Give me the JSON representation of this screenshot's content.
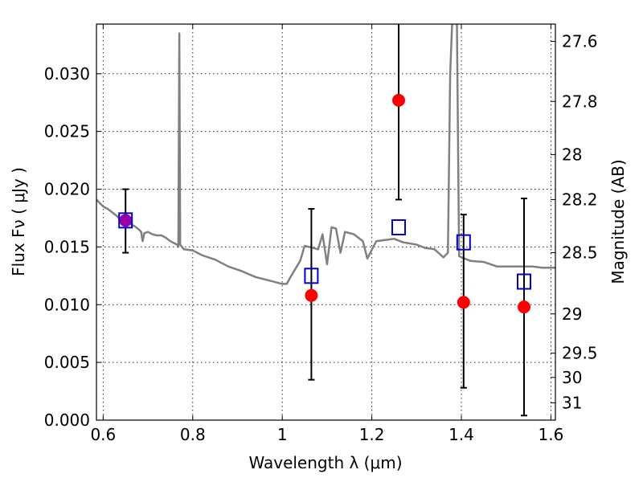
{
  "chart_data": {
    "type": "scatter",
    "title": "",
    "xlabel": "Wavelength  λ (μm)",
    "ylabel": "Flux  Fν  ( μJy )",
    "y2label": "Magnitude (AB)",
    "xlim": [
      0.585,
      1.61
    ],
    "ylim": [
      0.0,
      0.0343
    ],
    "grid": true,
    "x_ticks": [
      0.6,
      0.8,
      1.0,
      1.2,
      1.4,
      1.6
    ],
    "x_tick_labels": [
      "0.6",
      "0.8",
      "1",
      "1.2",
      "1.4",
      "1.6"
    ],
    "y_ticks": [
      0.0,
      0.005,
      0.01,
      0.015,
      0.02,
      0.025,
      0.03
    ],
    "y_tick_labels": [
      "0.000",
      "0.005",
      "0.010",
      "0.015",
      "0.020",
      "0.025",
      "0.030"
    ],
    "y2_ticks": [
      {
        "label": "27.6",
        "flux": 0.0328
      },
      {
        "label": "27.8",
        "flux": 0.0276
      },
      {
        "label": "28",
        "flux": 0.023
      },
      {
        "label": "28.2",
        "flux": 0.0191
      },
      {
        "label": "28.5",
        "flux": 0.0145
      },
      {
        "label": "29",
        "flux": 0.0092
      },
      {
        "label": "29.5",
        "flux": 0.0058
      },
      {
        "label": "30",
        "flux": 0.0037
      },
      {
        "label": "31",
        "flux": 0.0015
      }
    ],
    "model_spectrum": {
      "color": "#808080",
      "points": [
        [
          0.585,
          0.0191
        ],
        [
          0.6,
          0.0185
        ],
        [
          0.61,
          0.0183
        ],
        [
          0.62,
          0.018
        ],
        [
          0.63,
          0.0177
        ],
        [
          0.64,
          0.0173
        ],
        [
          0.65,
          0.0172
        ],
        [
          0.66,
          0.017
        ],
        [
          0.67,
          0.0168
        ],
        [
          0.68,
          0.0165
        ],
        [
          0.685,
          0.0163
        ],
        [
          0.688,
          0.0155
        ],
        [
          0.692,
          0.0162
        ],
        [
          0.7,
          0.0163
        ],
        [
          0.71,
          0.0161
        ],
        [
          0.72,
          0.016
        ],
        [
          0.73,
          0.016
        ],
        [
          0.74,
          0.0158
        ],
        [
          0.75,
          0.0155
        ],
        [
          0.76,
          0.0153
        ],
        [
          0.765,
          0.0152
        ],
        [
          0.768,
          0.015
        ],
        [
          0.77,
          0.0335
        ],
        [
          0.772,
          0.0152
        ],
        [
          0.78,
          0.0148
        ],
        [
          0.8,
          0.0147
        ],
        [
          0.82,
          0.0143
        ],
        [
          0.85,
          0.0139
        ],
        [
          0.88,
          0.0133
        ],
        [
          0.91,
          0.0129
        ],
        [
          0.94,
          0.0124
        ],
        [
          0.97,
          0.0121
        ],
        [
          1.0,
          0.0118
        ],
        [
          1.01,
          0.0118
        ],
        [
          1.02,
          0.0125
        ],
        [
          1.04,
          0.0138
        ],
        [
          1.05,
          0.0151
        ],
        [
          1.07,
          0.0149
        ],
        [
          1.08,
          0.0148
        ],
        [
          1.09,
          0.0161
        ],
        [
          1.1,
          0.0135
        ],
        [
          1.11,
          0.0167
        ],
        [
          1.12,
          0.0166
        ],
        [
          1.13,
          0.0145
        ],
        [
          1.14,
          0.0163
        ],
        [
          1.16,
          0.0161
        ],
        [
          1.18,
          0.0155
        ],
        [
          1.19,
          0.014
        ],
        [
          1.21,
          0.0155
        ],
        [
          1.23,
          0.0156
        ],
        [
          1.25,
          0.0157
        ],
        [
          1.27,
          0.0154
        ],
        [
          1.3,
          0.0152
        ],
        [
          1.32,
          0.0149
        ],
        [
          1.34,
          0.0148
        ],
        [
          1.36,
          0.0141
        ],
        [
          1.37,
          0.0145
        ],
        [
          1.375,
          0.03
        ],
        [
          1.38,
          0.035
        ],
        [
          1.39,
          0.035
        ],
        [
          1.395,
          0.0142
        ],
        [
          1.4,
          0.0141
        ],
        [
          1.42,
          0.0138
        ],
        [
          1.45,
          0.0137
        ],
        [
          1.48,
          0.0133
        ],
        [
          1.52,
          0.0133
        ],
        [
          1.56,
          0.0133
        ],
        [
          1.58,
          0.0132
        ],
        [
          1.61,
          0.0132
        ]
      ]
    },
    "observed": {
      "color": "#ff0000",
      "points": [
        {
          "x": 0.65,
          "y": 0.0173,
          "yerr_low": 0.0145,
          "yerr_high": 0.02
        },
        {
          "x": 1.065,
          "y": 0.0108,
          "yerr_low": 0.0035,
          "yerr_high": 0.0183
        },
        {
          "x": 1.26,
          "y": 0.0277,
          "yerr_low": 0.0191,
          "yerr_high": 0.035
        },
        {
          "x": 1.405,
          "y": 0.0102,
          "yerr_low": 0.0028,
          "yerr_high": 0.0178
        },
        {
          "x": 1.54,
          "y": 0.0098,
          "yerr_low": 0.0004,
          "yerr_high": 0.0192
        }
      ]
    },
    "model_photometry": {
      "color": "#0000cc",
      "points": [
        {
          "x": 0.65,
          "y": 0.0173
        },
        {
          "x": 1.065,
          "y": 0.0125
        },
        {
          "x": 1.26,
          "y": 0.0167
        },
        {
          "x": 1.405,
          "y": 0.0154
        },
        {
          "x": 1.54,
          "y": 0.012
        }
      ]
    },
    "overlap_color": "#9900aa"
  }
}
